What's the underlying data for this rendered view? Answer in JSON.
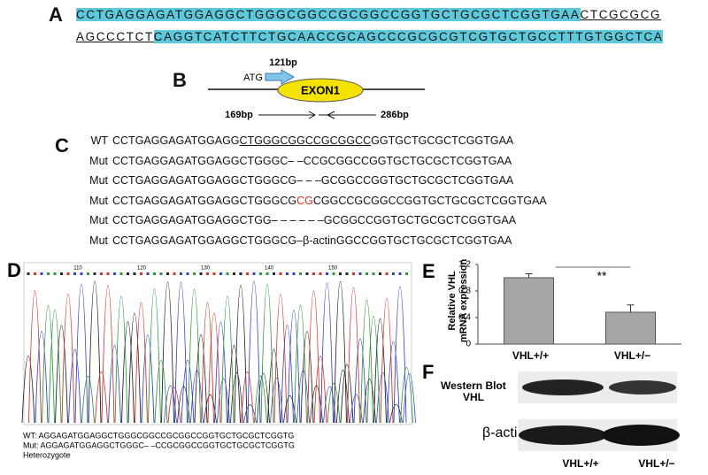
{
  "panel_a": {
    "label": "A",
    "line1_highlight": "CCTGAGGAGATGGAGGCTGGGCGGCCGCGGCCGGTGCTGCGCTCGGTGAA",
    "line1_underline": "CTCGCGCG",
    "line2_underline": "AGCCCTCT",
    "line2_highlight": "CAGGTCATCTTCTGCAACCGCAGCCCGCGCGTCGTGCTGCCTTTGTGGCTCA"
  },
  "panel_b": {
    "label": "B",
    "atg": "ATG",
    "primer_top": "121bp",
    "exon": "EXON1",
    "primer_left": "169bp",
    "primer_right": "286bp"
  },
  "panel_c": {
    "label": "C",
    "rows": [
      {
        "name": "WT",
        "pre": "CCTGAGGAGATGGAGG",
        "mid": "CTGGGCGGCCGCGGCC",
        "post": "GGTGCTGCGCTCGGTGAA"
      },
      {
        "name": "Mut",
        "pre": "CCTGAGGAGATGGAGGCTGGGC– –CCGCGGCCGGTGCTGCGCTCGGTGAA"
      },
      {
        "name": "Mut",
        "pre": "CCTGAGGAGATGGAGGCTGGGCG– – –GCGGCCGGTGCTGCGCTCGGTGAA"
      },
      {
        "name": "Mut",
        "pre": "CCTGAGGAGATGGAGGCTGGGCG",
        "mid": "CG",
        "post": "CGGCCGCGGCCGGTGCTGCGCTCGGTGAA"
      },
      {
        "name": "Mut",
        "pre": "CCTGAGGAGATGGAGGCTGG– – – – – –GCGGCCGGTGCTGCGCTCGGTGAA"
      },
      {
        "name": "Mut",
        "pre": "CCTGAGGAGATGGAGGCTGGGCG–",
        "mid": "β-actin",
        "post": "GGCCGGTGCTGCGCTCGGTGAA"
      }
    ]
  },
  "panel_d": {
    "label": "D",
    "positions": [
      "110",
      "120",
      "130",
      "140",
      "150"
    ],
    "wt": "WT:  AGGAGATGGAGGCTGGGCGGCCGCGGCCGGTGCTGCGCTCGGTG",
    "mut": "Mut: AGGAGATGGAGGCTGGGC– –CCGCGGCCGGTGCTGCGCTCGGTG",
    "note": "Heterozygote"
  },
  "chart_data": {
    "type": "bar",
    "label": "E",
    "ylabel": [
      "Relative VHL",
      "mRNA expression"
    ],
    "categories": [
      "VHL+/+",
      "VHL+/−"
    ],
    "values": [
      1.0,
      0.48
    ],
    "errors": [
      0.06,
      0.11
    ],
    "color": "#a6a6a6",
    "ylim": [
      0,
      1.2
    ],
    "yticks": [
      0,
      0.4,
      0.8,
      1.2
    ],
    "significance": "**"
  },
  "panel_f": {
    "label": "F",
    "method": "Western Blot",
    "protein": "VHL",
    "control": "β-actin",
    "lanes": [
      "VHL+/+",
      "VHL+/−"
    ]
  }
}
